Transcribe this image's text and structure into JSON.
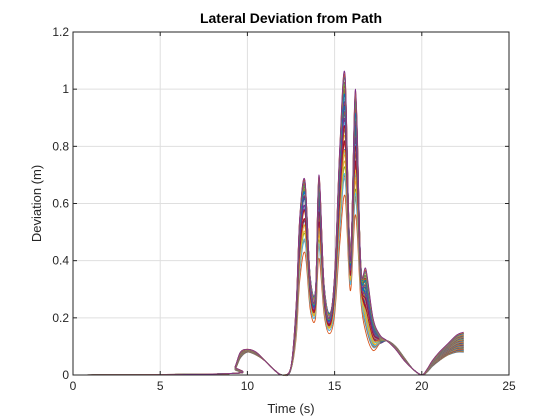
{
  "chart_data": {
    "type": "line",
    "title": "Lateral Deviation from Path",
    "xlabel": "Time (s)",
    "ylabel": "Deviation (m)",
    "xlim": [
      0,
      25
    ],
    "ylim": [
      0,
      1.2
    ],
    "xticks": [
      0,
      5,
      10,
      15,
      20,
      25
    ],
    "yticks": [
      0,
      0.2,
      0.4,
      0.6,
      0.8,
      1,
      1.2
    ],
    "xtick_labels": [
      "0",
      "5",
      "10",
      "15",
      "20",
      "25"
    ],
    "ytick_labels": [
      "0",
      "0.2",
      "0.4",
      "0.6",
      "0.8",
      "1",
      "1.2"
    ],
    "grid": true,
    "legend": "none",
    "series_count": 60,
    "colors": [
      "#0072BD",
      "#D95319",
      "#EDB120",
      "#7E2F8E",
      "#77AC30",
      "#4DBEEE",
      "#A2142F"
    ],
    "series": [
      {
        "x": [
          0,
          9.0,
          9.3,
          9.6,
          10.0,
          10.5,
          11.0,
          11.5,
          12.0,
          12.5,
          12.8,
          13.0,
          13.3,
          13.6,
          13.9,
          14.1,
          14.4,
          14.7,
          15.0,
          15.3,
          15.6,
          15.9,
          16.2,
          16.5,
          16.8,
          17.2,
          17.6,
          18.0,
          18.5,
          19.0,
          19.5,
          20.0,
          20.3,
          20.6,
          21.0,
          21.5,
          22.0,
          22.4
        ],
        "values": [
          0.0,
          0.005,
          0.02,
          0.06,
          0.08,
          0.07,
          0.05,
          0.02,
          0.0,
          0.02,
          0.2,
          0.5,
          0.65,
          0.35,
          0.3,
          0.62,
          0.32,
          0.22,
          0.32,
          0.7,
          0.95,
          0.45,
          0.85,
          0.4,
          0.22,
          0.13,
          0.11,
          0.12,
          0.1,
          0.06,
          0.02,
          0.0,
          0.01,
          0.03,
          0.05,
          0.07,
          0.08,
          0.08
        ]
      },
      {
        "x": [
          0,
          9.0,
          9.3,
          9.6,
          10.0,
          10.5,
          11.0,
          11.5,
          12.0,
          12.5,
          12.8,
          13.0,
          13.3,
          13.6,
          13.9,
          14.1,
          14.4,
          14.7,
          15.0,
          15.3,
          15.6,
          15.9,
          16.2,
          16.5,
          16.8,
          17.2,
          17.6,
          18.0,
          18.5,
          19.0,
          19.5,
          20.0,
          20.3,
          20.6,
          21.0,
          21.5,
          22.0,
          22.4
        ],
        "values": [
          0.0,
          0.005,
          0.03,
          0.08,
          0.09,
          0.08,
          0.05,
          0.02,
          0.0,
          0.03,
          0.25,
          0.55,
          0.68,
          0.33,
          0.28,
          0.7,
          0.3,
          0.2,
          0.35,
          0.8,
          1.05,
          0.4,
          1.0,
          0.38,
          0.37,
          0.2,
          0.14,
          0.12,
          0.09,
          0.05,
          0.02,
          0.0,
          0.02,
          0.05,
          0.08,
          0.11,
          0.14,
          0.15
        ]
      }
    ]
  }
}
